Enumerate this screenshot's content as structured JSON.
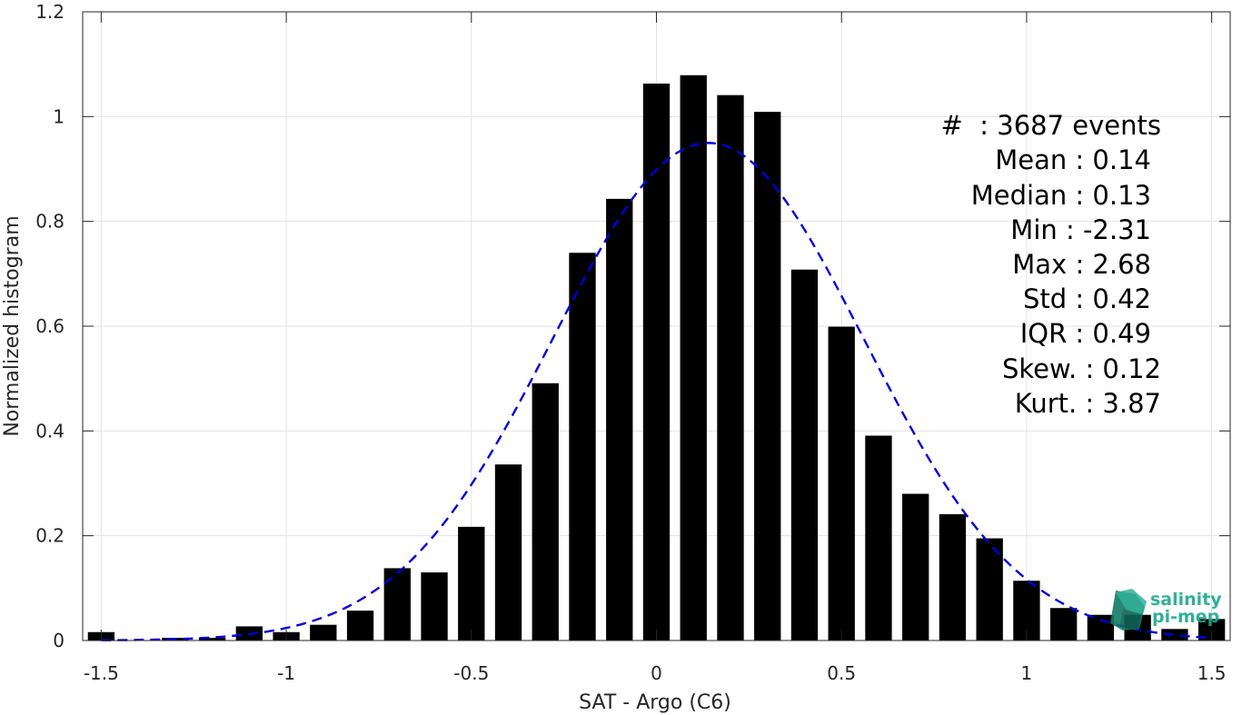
{
  "chart_data": {
    "type": "bar",
    "xlabel": "SAT - Argo (C6)",
    "ylabel": "Normalized histogram",
    "xlim": [
      -1.55,
      1.55
    ],
    "ylim": [
      0,
      1.2
    ],
    "grid": true,
    "xticks": [
      -1.5,
      -1,
      -0.5,
      0,
      0.5,
      1,
      1.5
    ],
    "xtick_labels": [
      "-1.5",
      "-1",
      "-0.5",
      "0",
      "0.5",
      "1",
      "1.5"
    ],
    "yticks": [
      0,
      0.2,
      0.4,
      0.6,
      0.8,
      1,
      1.2
    ],
    "ytick_labels": [
      "0",
      "0.2",
      "0.4",
      "0.6",
      "0.8",
      "1",
      "1.2"
    ],
    "bin_width": 0.1,
    "bins": [
      {
        "x": -1.5,
        "y": 0.016
      },
      {
        "x": -1.4,
        "y": 0.0
      },
      {
        "x": -1.3,
        "y": 0.005
      },
      {
        "x": -1.2,
        "y": 0.005
      },
      {
        "x": -1.1,
        "y": 0.027
      },
      {
        "x": -1.0,
        "y": 0.016
      },
      {
        "x": -0.9,
        "y": 0.03
      },
      {
        "x": -0.8,
        "y": 0.057
      },
      {
        "x": -0.7,
        "y": 0.138
      },
      {
        "x": -0.6,
        "y": 0.13
      },
      {
        "x": -0.5,
        "y": 0.217
      },
      {
        "x": -0.4,
        "y": 0.336
      },
      {
        "x": -0.3,
        "y": 0.491
      },
      {
        "x": -0.2,
        "y": 0.74
      },
      {
        "x": -0.1,
        "y": 0.843
      },
      {
        "x": 0.0,
        "y": 1.063
      },
      {
        "x": 0.1,
        "y": 1.079
      },
      {
        "x": 0.2,
        "y": 1.041
      },
      {
        "x": 0.3,
        "y": 1.009
      },
      {
        "x": 0.4,
        "y": 0.708
      },
      {
        "x": 0.5,
        "y": 0.599
      },
      {
        "x": 0.6,
        "y": 0.391
      },
      {
        "x": 0.7,
        "y": 0.28
      },
      {
        "x": 0.8,
        "y": 0.241
      },
      {
        "x": 0.9,
        "y": 0.195
      },
      {
        "x": 1.0,
        "y": 0.114
      },
      {
        "x": 1.1,
        "y": 0.062
      },
      {
        "x": 1.2,
        "y": 0.049
      },
      {
        "x": 1.3,
        "y": 0.049
      },
      {
        "x": 1.4,
        "y": 0.022
      },
      {
        "x": 1.5,
        "y": 0.041
      }
    ],
    "bar_color": "#000000",
    "fit": {
      "type": "gaussian",
      "mean": 0.14,
      "std": 0.42,
      "color": "#0000dd",
      "line_style": "dashed",
      "x_range": [
        -1.5,
        1.5
      ]
    }
  },
  "stats": {
    "lines": [
      "#  : 3687 events",
      "Mean : 0.14",
      "Median : 0.13",
      "Min : -2.31",
      "Max : 2.68",
      "Std : 0.42",
      "IQR : 0.49",
      "Skew. : 0.12",
      "Kurt. : 3.87"
    ]
  },
  "logo": {
    "line1": "salinity",
    "line2": "pi-mep",
    "color": "#1aa98c",
    "icon": "salinity-pimep-logo-icon"
  }
}
